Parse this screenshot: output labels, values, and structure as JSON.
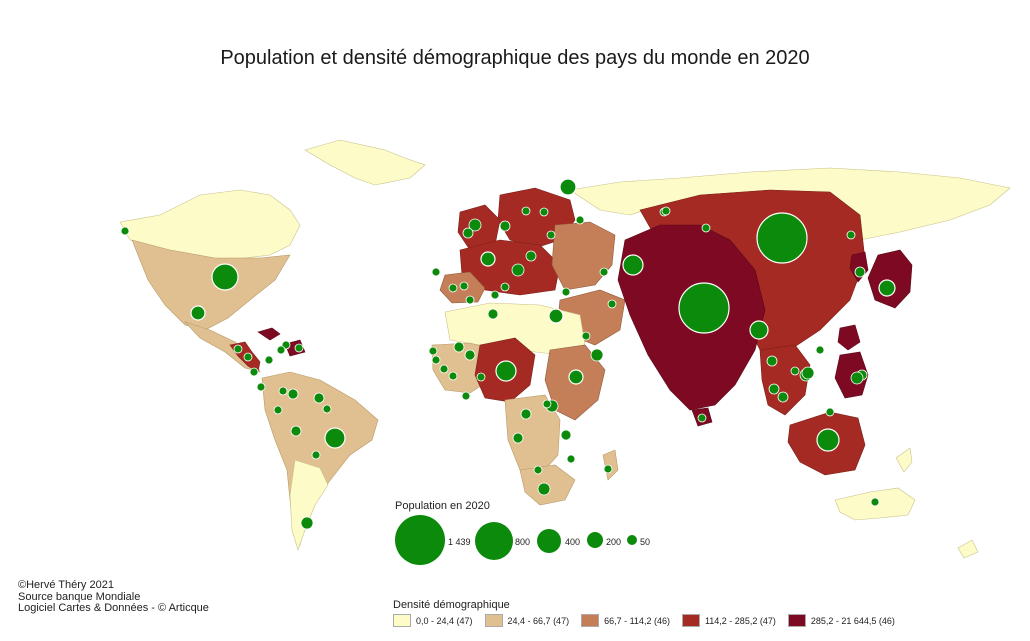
{
  "title": "Population et densité démographique des pays du monde en 2020",
  "credits": [
    "©Hervé Théry 2021",
    "Source banque Mondiale",
    "Logiciel  Cartes & Données - © Articque"
  ],
  "population_legend": {
    "title": "Population en 2020",
    "values": [
      "1 439",
      "800",
      "400",
      "200",
      "50"
    ]
  },
  "density_legend": {
    "title": "Densité démographique",
    "classes": [
      {
        "label": "0,0 - 24,4 (47)",
        "color": "#fdfbc8"
      },
      {
        "label": "24,4 - 66,7 (47)",
        "color": "#e0c090"
      },
      {
        "label": "66,7 - 114,2 (46)",
        "color": "#c47f58"
      },
      {
        "label": "114,2 - 285,2 (47)",
        "color": "#a52a23"
      },
      {
        "label": "285,2 - 21 644,5 (46)",
        "color": "#7d0a22"
      }
    ]
  },
  "colors": {
    "circle": "#0b8a0b",
    "circle_stroke": "#ffffff"
  }
}
